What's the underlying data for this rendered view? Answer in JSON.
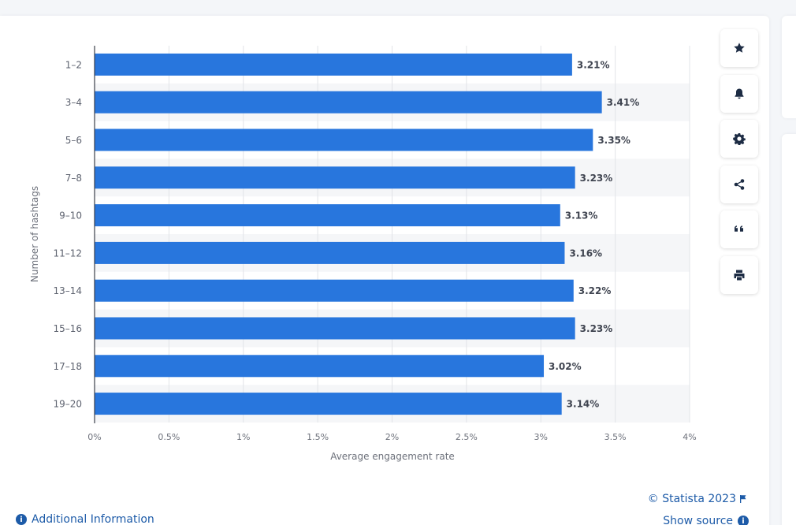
{
  "chart_data": {
    "type": "bar",
    "orientation": "horizontal",
    "categories": [
      "1-2",
      "3-4",
      "5-6",
      "7-8",
      "9-10",
      "11-12",
      "13-14",
      "15-16",
      "17-18",
      "19-20"
    ],
    "values": [
      3.21,
      3.41,
      3.35,
      3.23,
      3.13,
      3.16,
      3.22,
      3.23,
      3.02,
      3.14
    ],
    "data_labels": [
      "3.21%",
      "3.41%",
      "3.35%",
      "3.23%",
      "3.13%",
      "3.16%",
      "3.22%",
      "3.23%",
      "3.02%",
      "3.14%"
    ],
    "xlabel": "Average engagement rate",
    "ylabel": "Number of hashtags",
    "xlim": [
      0,
      4
    ],
    "x_ticks": [
      0,
      0.5,
      1,
      1.5,
      2,
      2.5,
      3,
      3.5,
      4
    ],
    "x_tick_labels": [
      "0%",
      "0.5%",
      "1%",
      "1.5%",
      "2%",
      "2.5%",
      "3%",
      "3.5%",
      "4%"
    ],
    "grid": true,
    "bar_color": "#2876dd"
  },
  "toolbar": {
    "items": [
      {
        "icon": "star-icon",
        "name": "favorite"
      },
      {
        "icon": "bell-icon",
        "name": "notify"
      },
      {
        "icon": "gear-icon",
        "name": "settings"
      },
      {
        "icon": "share-icon",
        "name": "share"
      },
      {
        "icon": "quote-icon",
        "name": "cite"
      },
      {
        "icon": "printer-icon",
        "name": "print"
      }
    ]
  },
  "footer": {
    "credit": "© Statista 2023",
    "show_source": "Show source",
    "additional_info": "Additional Information"
  },
  "colors": {
    "accent": "#1d5ba8",
    "bar": "#2876dd"
  }
}
